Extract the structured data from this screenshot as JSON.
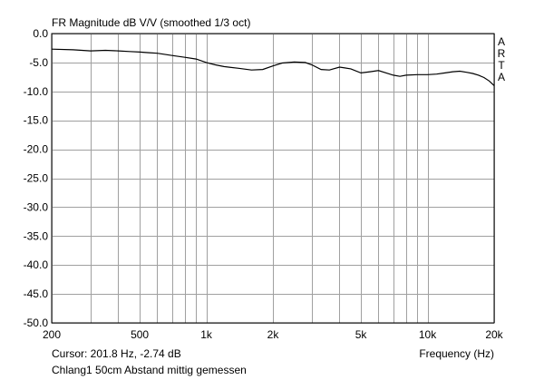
{
  "chart_data": {
    "type": "line",
    "title": "FR Magnitude dB V/V (smoothed 1/3 oct)",
    "xlabel": "Frequency (Hz)",
    "ylabel": "",
    "x_scale": "log",
    "xlim": [
      200,
      20000
    ],
    "ylim": [
      -50.0,
      0.0
    ],
    "grid": true,
    "x_tick_labels": [
      {
        "value": 200,
        "label": "200"
      },
      {
        "value": 500,
        "label": "500"
      },
      {
        "value": 1000,
        "label": "1k"
      },
      {
        "value": 2000,
        "label": "2k"
      },
      {
        "value": 5000,
        "label": "5k"
      },
      {
        "value": 10000,
        "label": "10k"
      },
      {
        "value": 20000,
        "label": "20k"
      }
    ],
    "x_gridlines": [
      200,
      300,
      400,
      500,
      600,
      700,
      800,
      900,
      1000,
      2000,
      3000,
      4000,
      5000,
      6000,
      7000,
      8000,
      9000,
      10000,
      20000
    ],
    "y_ticks": [
      0.0,
      -5.0,
      -10.0,
      -15.0,
      -20.0,
      -25.0,
      -30.0,
      -35.0,
      -40.0,
      -45.0,
      -50.0
    ],
    "y_tick_labels": [
      "0.0",
      "-5.0",
      "-10.0",
      "-15.0",
      "-20.0",
      "-25.0",
      "-30.0",
      "-35.0",
      "-40.0",
      "-45.0",
      "-50.0"
    ],
    "series": [
      {
        "name": "",
        "color": "#000000",
        "points": [
          [
            200,
            -2.7
          ],
          [
            250,
            -2.8
          ],
          [
            300,
            -3.0
          ],
          [
            350,
            -2.9
          ],
          [
            400,
            -3.0
          ],
          [
            450,
            -3.1
          ],
          [
            500,
            -3.2
          ],
          [
            550,
            -3.3
          ],
          [
            600,
            -3.4
          ],
          [
            700,
            -3.8
          ],
          [
            800,
            -4.1
          ],
          [
            900,
            -4.4
          ],
          [
            1000,
            -5.0
          ],
          [
            1100,
            -5.4
          ],
          [
            1200,
            -5.7
          ],
          [
            1400,
            -6.0
          ],
          [
            1600,
            -6.3
          ],
          [
            1800,
            -6.2
          ],
          [
            2000,
            -5.6
          ],
          [
            2200,
            -5.1
          ],
          [
            2500,
            -4.9
          ],
          [
            2800,
            -5.0
          ],
          [
            3000,
            -5.4
          ],
          [
            3300,
            -6.2
          ],
          [
            3600,
            -6.3
          ],
          [
            4000,
            -5.8
          ],
          [
            4500,
            -6.1
          ],
          [
            5000,
            -6.8
          ],
          [
            5500,
            -6.6
          ],
          [
            6000,
            -6.4
          ],
          [
            6500,
            -6.8
          ],
          [
            7000,
            -7.2
          ],
          [
            7500,
            -7.4
          ],
          [
            8000,
            -7.2
          ],
          [
            9000,
            -7.1
          ],
          [
            10000,
            -7.1
          ],
          [
            11000,
            -7.0
          ],
          [
            12000,
            -6.8
          ],
          [
            13000,
            -6.6
          ],
          [
            14000,
            -6.5
          ],
          [
            15000,
            -6.7
          ],
          [
            16000,
            -6.9
          ],
          [
            17000,
            -7.2
          ],
          [
            18000,
            -7.6
          ],
          [
            19000,
            -8.2
          ],
          [
            20000,
            -9.0
          ]
        ]
      }
    ],
    "side_label": [
      "A",
      "R",
      "T",
      "A"
    ],
    "cursor_readout": "Cursor: 201.8 Hz, -2.74 dB",
    "caption": "Chlang1 50cm Abstand mittig gemessen"
  },
  "colors": {
    "background": "#ffffff",
    "grid": "#a0a0a0",
    "curve": "#000000",
    "frame": "#000000"
  }
}
